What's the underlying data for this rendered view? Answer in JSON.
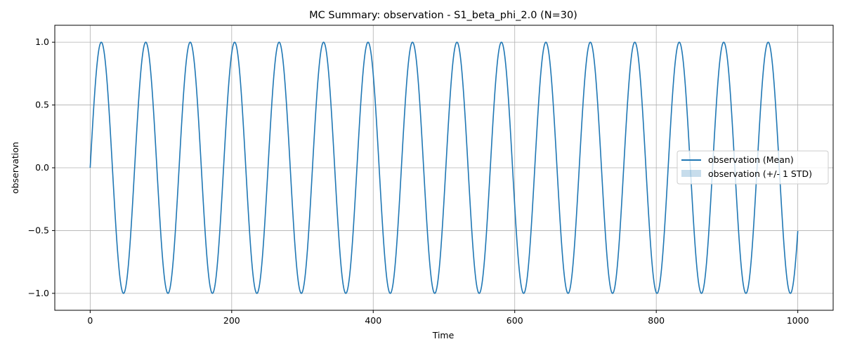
{
  "chart_data": {
    "type": "line",
    "title": "MC Summary: observation - S1_beta_phi_2.0 (N=30)",
    "xlabel": "Time",
    "ylabel": "observation",
    "xlim": [
      -50,
      1050
    ],
    "ylim": [
      -1.135,
      1.135
    ],
    "xticks": [
      0,
      200,
      400,
      600,
      800,
      1000
    ],
    "xtick_labels": [
      "0",
      "200",
      "400",
      "600",
      "800",
      "1000"
    ],
    "yticks": [
      -1.0,
      -0.5,
      0.0,
      0.5,
      1.0
    ],
    "ytick_labels": [
      "−1.0",
      "−0.5",
      "0.0",
      "0.5",
      "1.0"
    ],
    "grid": true,
    "legend_position": "center-right",
    "series": [
      {
        "name": "observation (Mean)",
        "kind": "line",
        "color": "#1f77b4",
        "function": "sin",
        "amplitude": 1.0,
        "period": 62.83,
        "x_start": 0,
        "x_end": 1000
      },
      {
        "name": "observation (+/- 1 STD)",
        "kind": "band",
        "color": "#1f77b4",
        "opacity": 0.25,
        "std_approx": 0.005
      }
    ]
  }
}
